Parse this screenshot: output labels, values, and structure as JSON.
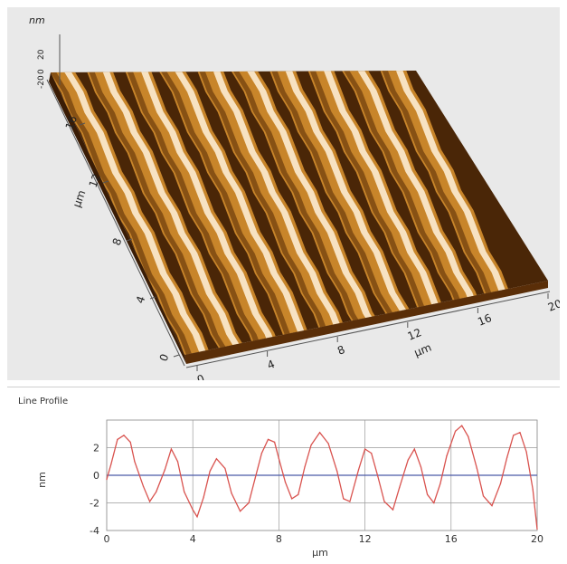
{
  "chart_data": [
    {
      "type": "surface-3d",
      "z_unit": "nm",
      "z_ticks": [
        "20",
        "0",
        "-20"
      ],
      "y_label": "µm",
      "y_ticks": [
        "0",
        "4",
        "8",
        "12",
        "16"
      ],
      "x_label": "µm",
      "x_ticks": [
        "0",
        "4",
        "8",
        "12",
        "16",
        "20"
      ],
      "colors": {
        "ridge_light": "#fff2dd",
        "ridge_mid": "#c8852a",
        "valley": "#4a2607",
        "background": "#e9e9e9"
      }
    },
    {
      "type": "line",
      "title": "Line Profile",
      "xlabel": "µm",
      "ylabel": "nm",
      "xlim": [
        0,
        20
      ],
      "ylim": [
        -4,
        4
      ],
      "x_ticks": [
        0,
        4,
        8,
        12,
        16,
        20
      ],
      "y_ticks": [
        -4,
        -2,
        0,
        2
      ],
      "grid": true,
      "line_color": "#d9534f",
      "zero_line_color": "#4b5aa8",
      "series": [
        {
          "x": [
            0,
            0.2,
            0.5,
            0.8,
            1.1,
            1.3,
            1.7,
            2.0,
            2.3,
            2.7,
            3.0,
            3.3,
            3.6,
            4.0,
            4.2,
            4.5,
            4.8,
            5.1,
            5.5,
            5.8,
            6.2,
            6.6,
            6.9,
            7.2,
            7.5,
            7.8,
            8.0,
            8.3,
            8.6,
            8.9,
            9.2,
            9.5,
            9.9,
            10.3,
            10.7,
            11.0,
            11.3,
            11.7,
            12.0,
            12.3,
            12.6,
            12.9,
            13.3,
            13.6,
            14.0,
            14.3,
            14.6,
            14.9,
            15.2,
            15.5,
            15.8,
            16.2,
            16.5,
            16.8,
            17.2,
            17.5,
            17.9,
            18.3,
            18.6,
            18.9,
            19.2,
            19.5,
            19.8,
            20.0
          ],
          "y": [
            -0.3,
            0.8,
            2.6,
            2.9,
            2.4,
            1.0,
            -0.8,
            -1.9,
            -1.2,
            0.4,
            1.9,
            1.0,
            -1.2,
            -2.5,
            -3.0,
            -1.6,
            0.3,
            1.2,
            0.5,
            -1.3,
            -2.6,
            -2.0,
            -0.2,
            1.6,
            2.6,
            2.4,
            1.2,
            -0.5,
            -1.7,
            -1.4,
            0.6,
            2.2,
            3.1,
            2.3,
            0.3,
            -1.7,
            -1.9,
            0.4,
            1.9,
            1.6,
            -0.1,
            -1.9,
            -2.5,
            -0.9,
            1.1,
            1.9,
            0.6,
            -1.4,
            -2.0,
            -0.6,
            1.4,
            3.2,
            3.6,
            2.8,
            0.5,
            -1.5,
            -2.2,
            -0.6,
            1.3,
            2.9,
            3.1,
            1.7,
            -1.0,
            -3.9
          ]
        }
      ]
    }
  ]
}
